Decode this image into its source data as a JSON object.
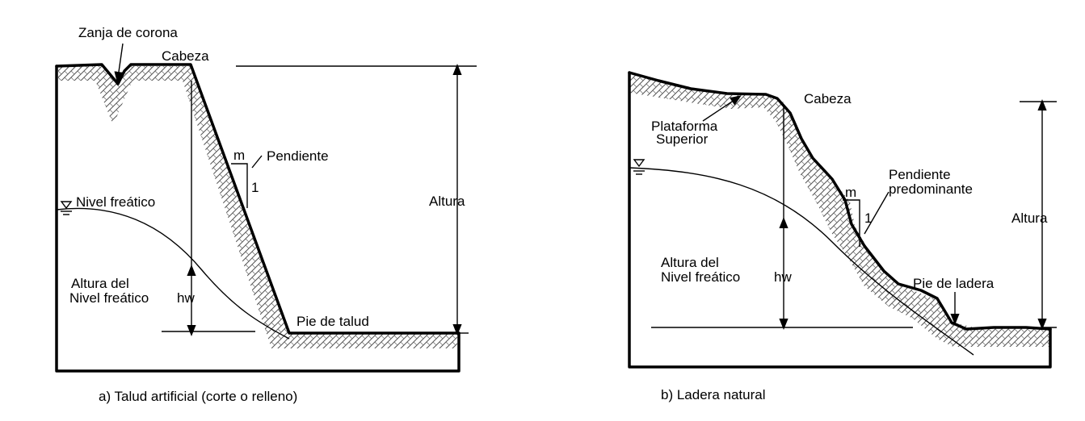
{
  "panel_a": {
    "caption": "a) Talud artificial (corte o relleno)",
    "labels": {
      "trench": "Zanja de corona",
      "head": "Cabeza",
      "slope": "Pendiente",
      "m": "m",
      "one": "1",
      "height": "Altura",
      "water_table": "Nivel freático",
      "wt_height_line1": "Altura del",
      "wt_height_line2": "Nivel freático",
      "hw": "hw",
      "toe": "Pie de talud"
    }
  },
  "panel_b": {
    "caption": "b) Ladera natural",
    "labels": {
      "head": "Cabeza",
      "platform_line1": "Plataforma",
      "platform_line2": "Superior",
      "slope_line1": "Pendiente",
      "slope_line2": "predominante",
      "m": "m",
      "one": "1",
      "height": "Altura",
      "wt_height_line1": "Altura del",
      "wt_height_line2": "Nivel freático",
      "hw": "hw",
      "toe": "Pie de ladera"
    }
  }
}
